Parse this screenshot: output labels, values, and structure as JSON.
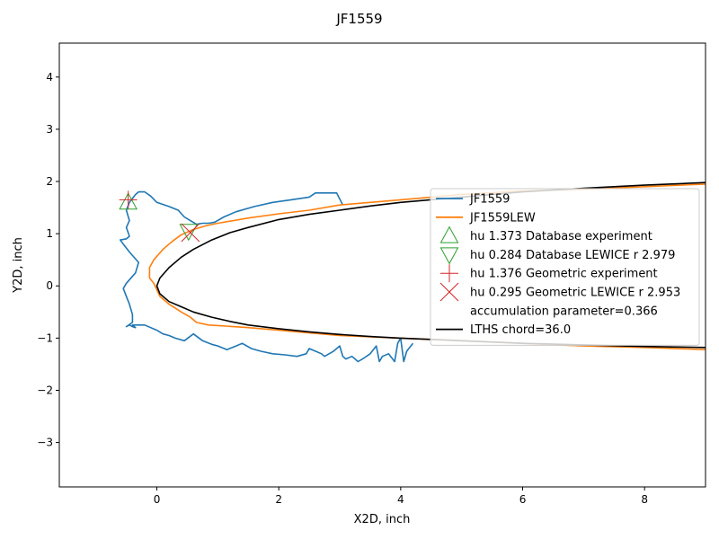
{
  "chart_data": {
    "type": "line",
    "title": "JF1559",
    "xlabel": "X2D, inch",
    "ylabel": "Y2D, inch",
    "xlim": [
      -1.6,
      9.0
    ],
    "ylim": [
      -3.85,
      4.65
    ],
    "xticks": [
      0,
      2,
      4,
      6,
      8
    ],
    "yticks": [
      -3,
      -2,
      -1,
      0,
      1,
      2,
      3,
      4
    ],
    "grid": false,
    "legend_position": "center-right",
    "series": [
      {
        "name": "JF1559",
        "color": "#1f77b4",
        "x": [
          3.05,
          2.95,
          2.9,
          2.6,
          2.5,
          2.2,
          1.9,
          1.6,
          1.3,
          1.1,
          0.95,
          0.85,
          0.75,
          0.65,
          0.55,
          0.45,
          0.35,
          0.2,
          0.0,
          -0.1,
          -0.2,
          -0.3,
          -0.35,
          -0.45,
          -0.5,
          -0.45,
          -0.5,
          -0.45,
          -0.5,
          -0.6,
          -0.55,
          -0.45,
          -0.3,
          -0.35,
          -0.5,
          -0.55,
          -0.5,
          -0.45,
          -0.4,
          -0.4,
          -0.5,
          -0.45,
          -0.4,
          -0.35,
          -0.4,
          -0.2,
          0.0,
          0.1,
          0.2,
          0.3,
          0.45,
          0.6,
          0.75,
          0.9,
          1.0,
          1.15,
          1.3,
          1.4,
          1.55,
          1.7,
          1.9,
          2.1,
          2.3,
          2.45,
          2.5,
          2.6,
          2.7,
          2.75,
          2.9,
          3.0,
          3.05,
          3.1,
          3.2,
          3.3,
          3.4,
          3.5,
          3.6,
          3.65,
          3.7,
          3.8,
          3.9,
          3.95,
          4.0,
          4.05,
          4.1,
          4.2
        ],
        "y": [
          1.55,
          1.78,
          1.78,
          1.78,
          1.7,
          1.65,
          1.6,
          1.52,
          1.42,
          1.32,
          1.22,
          1.2,
          1.2,
          1.18,
          1.25,
          1.32,
          1.45,
          1.52,
          1.6,
          1.72,
          1.8,
          1.8,
          1.75,
          1.6,
          1.45,
          1.25,
          1.12,
          0.95,
          0.9,
          0.88,
          0.8,
          0.65,
          0.45,
          0.25,
          0.05,
          -0.05,
          -0.2,
          -0.35,
          -0.55,
          -0.7,
          -0.78,
          -0.75,
          -0.78,
          -0.8,
          -0.75,
          -0.75,
          -0.85,
          -0.92,
          -0.95,
          -1.0,
          -1.05,
          -0.92,
          -1.05,
          -1.12,
          -1.15,
          -1.22,
          -1.15,
          -1.1,
          -1.2,
          -1.25,
          -1.3,
          -1.32,
          -1.35,
          -1.3,
          -1.2,
          -1.25,
          -1.3,
          -1.35,
          -1.25,
          -1.15,
          -1.35,
          -1.4,
          -1.35,
          -1.45,
          -1.38,
          -1.3,
          -1.15,
          -1.45,
          -1.35,
          -1.3,
          -1.45,
          -1.1,
          -1.0,
          -1.45,
          -1.25,
          -1.1
        ]
      },
      {
        "name": "JF1559LEW",
        "color": "#ff7f0e",
        "x": [
          9.0,
          8.0,
          7.0,
          6.0,
          5.0,
          4.0,
          3.0,
          2.5,
          2.0,
          1.5,
          1.0,
          0.8,
          0.6,
          0.4,
          0.25,
          0.1,
          -0.05,
          -0.12,
          -0.12,
          -0.05,
          0.05,
          0.2,
          0.4,
          0.55,
          0.65,
          0.85,
          1.0,
          1.5,
          2.0,
          2.5,
          3.0,
          4.0,
          5.0,
          6.0,
          7.0,
          8.0,
          9.0
        ],
        "y": [
          1.95,
          1.9,
          1.85,
          1.82,
          1.75,
          1.65,
          1.55,
          1.45,
          1.38,
          1.3,
          1.2,
          1.15,
          1.08,
          0.98,
          0.85,
          0.7,
          0.5,
          0.35,
          0.15,
          0.05,
          -0.2,
          -0.35,
          -0.5,
          -0.6,
          -0.7,
          -0.75,
          -0.76,
          -0.8,
          -0.85,
          -0.9,
          -0.95,
          -1.0,
          -1.05,
          -1.1,
          -1.15,
          -1.18,
          -1.22
        ]
      },
      {
        "name": "accumulation parameter=0.366",
        "color": "",
        "x": [],
        "y": []
      },
      {
        "name": "LTHS chord=36.0",
        "color": "#000000",
        "x": [
          9.0,
          8.0,
          7.0,
          6.0,
          5.0,
          4.0,
          3.5,
          3.0,
          2.5,
          2.0,
          1.5,
          1.2,
          0.9,
          0.6,
          0.4,
          0.2,
          0.05,
          0.0,
          0.05,
          0.2,
          0.4,
          0.6,
          0.9,
          1.2,
          1.5,
          2.0,
          2.5,
          3.0,
          3.5,
          4.0,
          5.0,
          6.0,
          7.0,
          8.0,
          9.0
        ],
        "y": [
          1.98,
          1.93,
          1.87,
          1.8,
          1.7,
          1.6,
          1.53,
          1.45,
          1.37,
          1.27,
          1.12,
          1.02,
          0.88,
          0.7,
          0.55,
          0.35,
          0.15,
          0.0,
          -0.15,
          -0.3,
          -0.4,
          -0.5,
          -0.6,
          -0.68,
          -0.75,
          -0.82,
          -0.88,
          -0.93,
          -0.97,
          -1.0,
          -1.05,
          -1.1,
          -1.13,
          -1.16,
          -1.18
        ]
      }
    ],
    "markers": [
      {
        "name": "hu 1.373 Database experiment",
        "shape": "triangle-up",
        "color": "#2ca02c",
        "x": -0.47,
        "y": 1.6
      },
      {
        "name": "hu 0.284 Database LEWICE r 2.979",
        "shape": "triangle-down",
        "color": "#2ca02c",
        "x": 0.52,
        "y": 1.05
      },
      {
        "name": "hu 1.376 Geometric experiment",
        "shape": "plus",
        "color": "#d62728",
        "x": -0.47,
        "y": 1.65
      },
      {
        "name": "hu 0.295 Geometric LEWICE r 2.953",
        "shape": "x",
        "color": "#d62728",
        "x": 0.55,
        "y": 1.02
      }
    ],
    "legend_order": [
      {
        "label": "JF1559",
        "kind": "line",
        "color": "#1f77b4"
      },
      {
        "label": "JF1559LEW",
        "kind": "line",
        "color": "#ff7f0e"
      },
      {
        "label": "hu 1.373 Database experiment",
        "kind": "triangle-up",
        "color": "#2ca02c"
      },
      {
        "label": "hu 0.284 Database LEWICE r 2.979",
        "kind": "triangle-down",
        "color": "#2ca02c"
      },
      {
        "label": "hu 1.376 Geometric experiment",
        "kind": "plus",
        "color": "#d62728"
      },
      {
        "label": "hu 0.295 Geometric LEWICE r 2.953",
        "kind": "x",
        "color": "#d62728"
      },
      {
        "label": "accumulation parameter=0.366",
        "kind": "none",
        "color": ""
      },
      {
        "label": "LTHS chord=36.0",
        "kind": "line",
        "color": "#000000"
      }
    ]
  }
}
